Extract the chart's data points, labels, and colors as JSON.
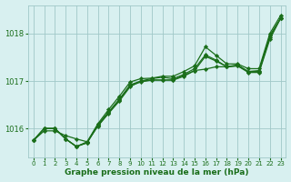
{
  "title": "Graphe pression niveau de la mer (hPa)",
  "background_color": "#d8f0f0",
  "grid_color": "#a0c8c8",
  "line_color": "#1a6e1a",
  "marker_color": "#1a6e1a",
  "ylim": [
    1015.4,
    1018.6
  ],
  "yticks": [
    1016,
    1017,
    1018
  ],
  "xlim": [
    -0.5,
    23.5
  ],
  "xticks": [
    0,
    1,
    2,
    3,
    4,
    5,
    6,
    7,
    8,
    9,
    10,
    11,
    12,
    13,
    14,
    15,
    16,
    17,
    18,
    19,
    20,
    21,
    22,
    23
  ],
  "series": [
    [
      1015.75,
      1015.95,
      1015.95,
      1015.85,
      1015.78,
      1015.72,
      1016.05,
      1016.32,
      1016.58,
      1016.88,
      1017.0,
      1017.02,
      1017.02,
      1017.02,
      1017.1,
      1017.22,
      1017.25,
      1017.3,
      1017.3,
      1017.32,
      1017.18,
      1017.18,
      1017.88,
      1018.32
    ],
    [
      1015.75,
      1016.0,
      1016.0,
      1015.78,
      1015.62,
      1015.7,
      1016.08,
      1016.35,
      1016.62,
      1016.92,
      1017.0,
      1017.05,
      1017.08,
      1017.05,
      1017.14,
      1017.26,
      1017.55,
      1017.44,
      1017.3,
      1017.34,
      1017.2,
      1017.22,
      1017.96,
      1018.32
    ],
    [
      1015.75,
      1016.0,
      1016.0,
      1015.78,
      1015.62,
      1015.72,
      1016.1,
      1016.4,
      1016.68,
      1016.98,
      1017.05,
      1017.06,
      1017.1,
      1017.1,
      1017.2,
      1017.32,
      1017.72,
      1017.54,
      1017.36,
      1017.36,
      1017.26,
      1017.26,
      1018.0,
      1018.38
    ],
    [
      1015.75,
      1016.0,
      1016.0,
      1015.78,
      1015.62,
      1015.7,
      1016.06,
      1016.33,
      1016.6,
      1016.9,
      1016.98,
      1017.02,
      1017.02,
      1017.02,
      1017.12,
      1017.22,
      1017.52,
      1017.42,
      1017.3,
      1017.32,
      1017.2,
      1017.2,
      1017.92,
      1018.32
    ]
  ]
}
